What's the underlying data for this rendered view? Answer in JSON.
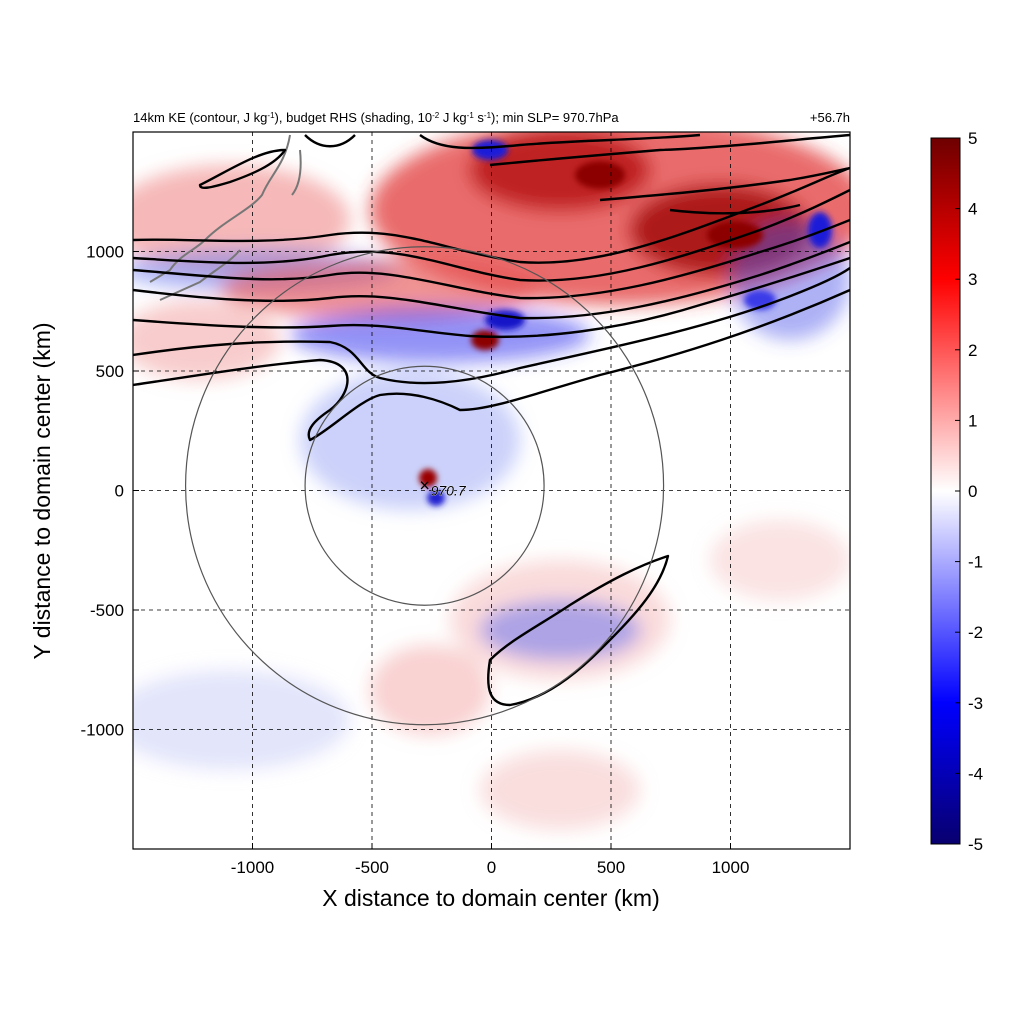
{
  "header": {
    "title_parts": [
      {
        "t": "14km KE (contour, J kg"
      },
      {
        "t": "-1",
        "sup": true
      },
      {
        "t": "), budget RHS (shading, 10"
      },
      {
        "t": "-2",
        "sup": true
      },
      {
        "t": " J kg"
      },
      {
        "t": "-1",
        "sup": true
      },
      {
        "t": " s"
      },
      {
        "t": "-1",
        "sup": true
      },
      {
        "t": "); min SLP= 970.7hPa"
      }
    ],
    "time_label": "+56.7h"
  },
  "chart_data": {
    "type": "heatmap",
    "xlabel": "X distance to domain center (km)",
    "ylabel": "Y distance to domain center (km)",
    "xlim": [
      -1500,
      1500
    ],
    "ylim": [
      -1500,
      1500
    ],
    "xticks": [
      -1000,
      -500,
      0,
      500,
      1000
    ],
    "yticks": [
      -1000,
      -500,
      0,
      500,
      1000
    ],
    "grid": "dashed",
    "storm_center": {
      "x": -280,
      "y": 20,
      "marker": "×",
      "label": "970.7"
    },
    "range_rings_km": [
      500,
      1000
    ],
    "colorbar": {
      "min": -5,
      "max": 5,
      "ticks": [
        5,
        4,
        3,
        2,
        1,
        0,
        -1,
        -2,
        -3,
        -4,
        -5
      ],
      "colormap": [
        "#08006e",
        "#0000ff",
        "#ffffff",
        "#ff0000",
        "#6e0000"
      ]
    }
  }
}
